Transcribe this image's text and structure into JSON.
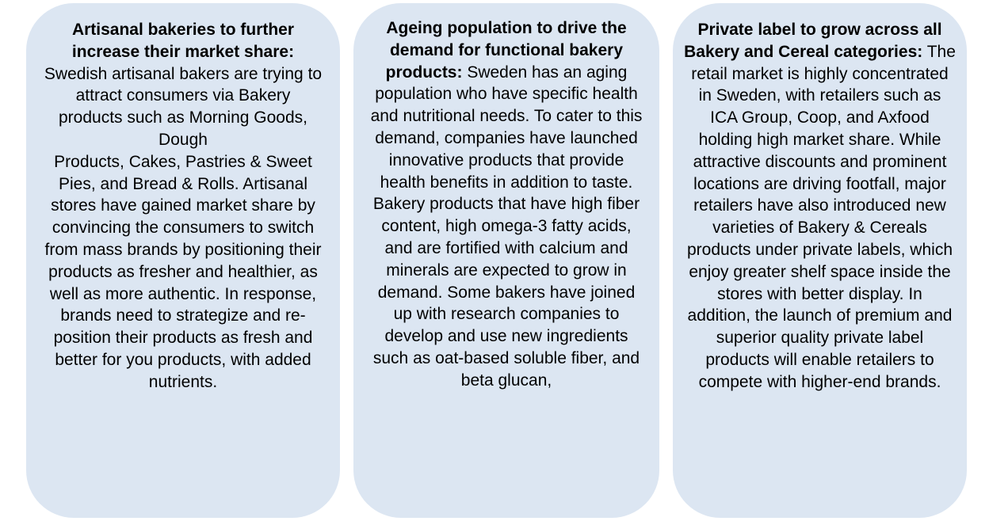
{
  "cards": [
    {
      "heading": "Artisanal bakeries to further increase their market share:",
      "body_1": "Swedish artisanal bakers are trying to attract consumers via Bakery products such as Morning Goods, Dough",
      "body_2": "Products, Cakes, Pastries & Sweet Pies, and Bread & Rolls. Artisanal stores have gained market share by convincing the consumers to switch from mass brands by positioning their products as fresher and healthier, as well as more authentic. In response, brands need to strategize and re-position their products as fresh and better for you products, with added nutrients."
    },
    {
      "heading": "Ageing population to drive the demand for functional bakery products:",
      "body": "Sweden has an aging population who have specific health and nutritional needs. To cater to this demand, companies have launched innovative products that provide health benefits in addition to taste. Bakery products that have high fiber content, high omega-3 fatty acids, and are fortified with calcium and minerals are expected to grow in demand. Some bakers have joined up with research companies to develop and use new ingredients such as oat-based soluble fiber, and beta glucan,"
    },
    {
      "heading": "Private label to grow across all Bakery and Cereal categories:",
      "body": "The retail market is highly concentrated in Sweden, with retailers such as ICA Group, Coop, and Axfood holding high market share. While attractive discounts and prominent locations are driving footfall, major retailers have also introduced new varieties of Bakery & Cereals products under private labels, which enjoy greater shelf space inside the stores with better display. In addition, the launch of premium and superior quality private label products  will enable retailers to compete with higher-end brands."
    }
  ]
}
